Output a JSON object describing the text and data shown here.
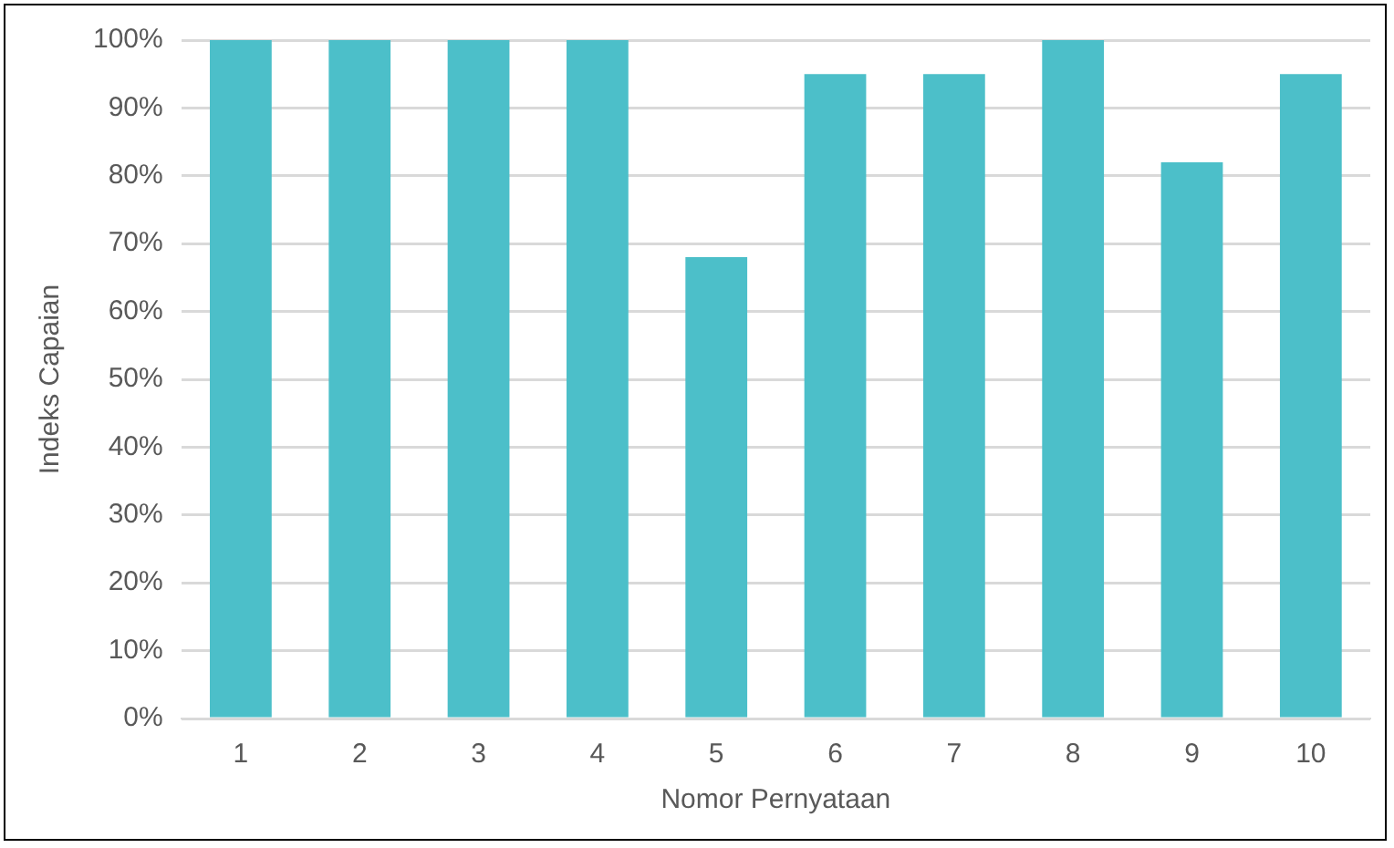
{
  "chart_data": {
    "type": "bar",
    "xlabel": "Nomor Pernyataan",
    "ylabel": "Indeks Capaian",
    "categories": [
      "1",
      "2",
      "3",
      "4",
      "5",
      "6",
      "7",
      "8",
      "9",
      "10"
    ],
    "values": [
      100,
      100,
      100,
      100,
      68,
      95,
      95,
      100,
      82,
      95
    ],
    "color": "#4cbfc9",
    "ylim": [
      0,
      100
    ],
    "yticks": [
      {
        "value": 0,
        "label": "0%"
      },
      {
        "value": 10,
        "label": "10%"
      },
      {
        "value": 20,
        "label": "20%"
      },
      {
        "value": 30,
        "label": "30%"
      },
      {
        "value": 40,
        "label": "40%"
      },
      {
        "value": 50,
        "label": "50%"
      },
      {
        "value": 60,
        "label": "60%"
      },
      {
        "value": 70,
        "label": "70%"
      },
      {
        "value": 80,
        "label": "80%"
      },
      {
        "value": 90,
        "label": "90%"
      },
      {
        "value": 100,
        "label": "100%"
      }
    ],
    "grid": "y",
    "legend": false
  }
}
